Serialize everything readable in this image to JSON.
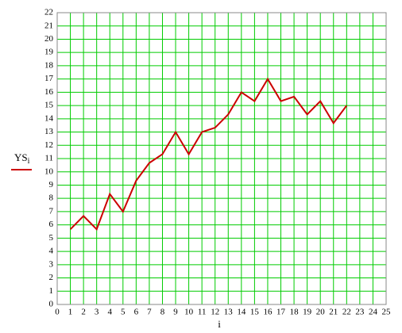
{
  "chart_data": {
    "type": "line",
    "x_label": "i",
    "x": [
      1,
      2,
      3,
      4,
      5,
      6,
      7,
      8,
      9,
      10,
      11,
      12,
      13,
      14,
      15,
      16,
      17,
      18,
      19,
      20,
      21,
      22
    ],
    "series": [
      {
        "name": "YS",
        "subscript": "i",
        "color": "#cc0000",
        "values": [
          5.67,
          6.67,
          5.67,
          8.33,
          7,
          9.33,
          10.67,
          11.33,
          13,
          11.33,
          13,
          13.33,
          14.33,
          16,
          15.33,
          17,
          15.33,
          15.67,
          14.33,
          15.33,
          13.67,
          15
        ]
      }
    ],
    "xlim": [
      0,
      25
    ],
    "xticks": [
      0,
      1,
      2,
      3,
      4,
      5,
      6,
      7,
      8,
      9,
      10,
      11,
      12,
      13,
      14,
      15,
      16,
      17,
      18,
      19,
      20,
      21,
      22,
      23,
      24,
      25
    ],
    "ylim": [
      0,
      22
    ],
    "yticks": [
      0,
      1,
      2,
      3,
      4,
      5,
      6,
      7,
      8,
      9,
      10,
      11,
      12,
      13,
      14,
      15,
      16,
      17,
      18,
      19,
      20,
      21,
      22
    ],
    "grid": true,
    "grid_color": "#00cc00",
    "legend": "left"
  }
}
